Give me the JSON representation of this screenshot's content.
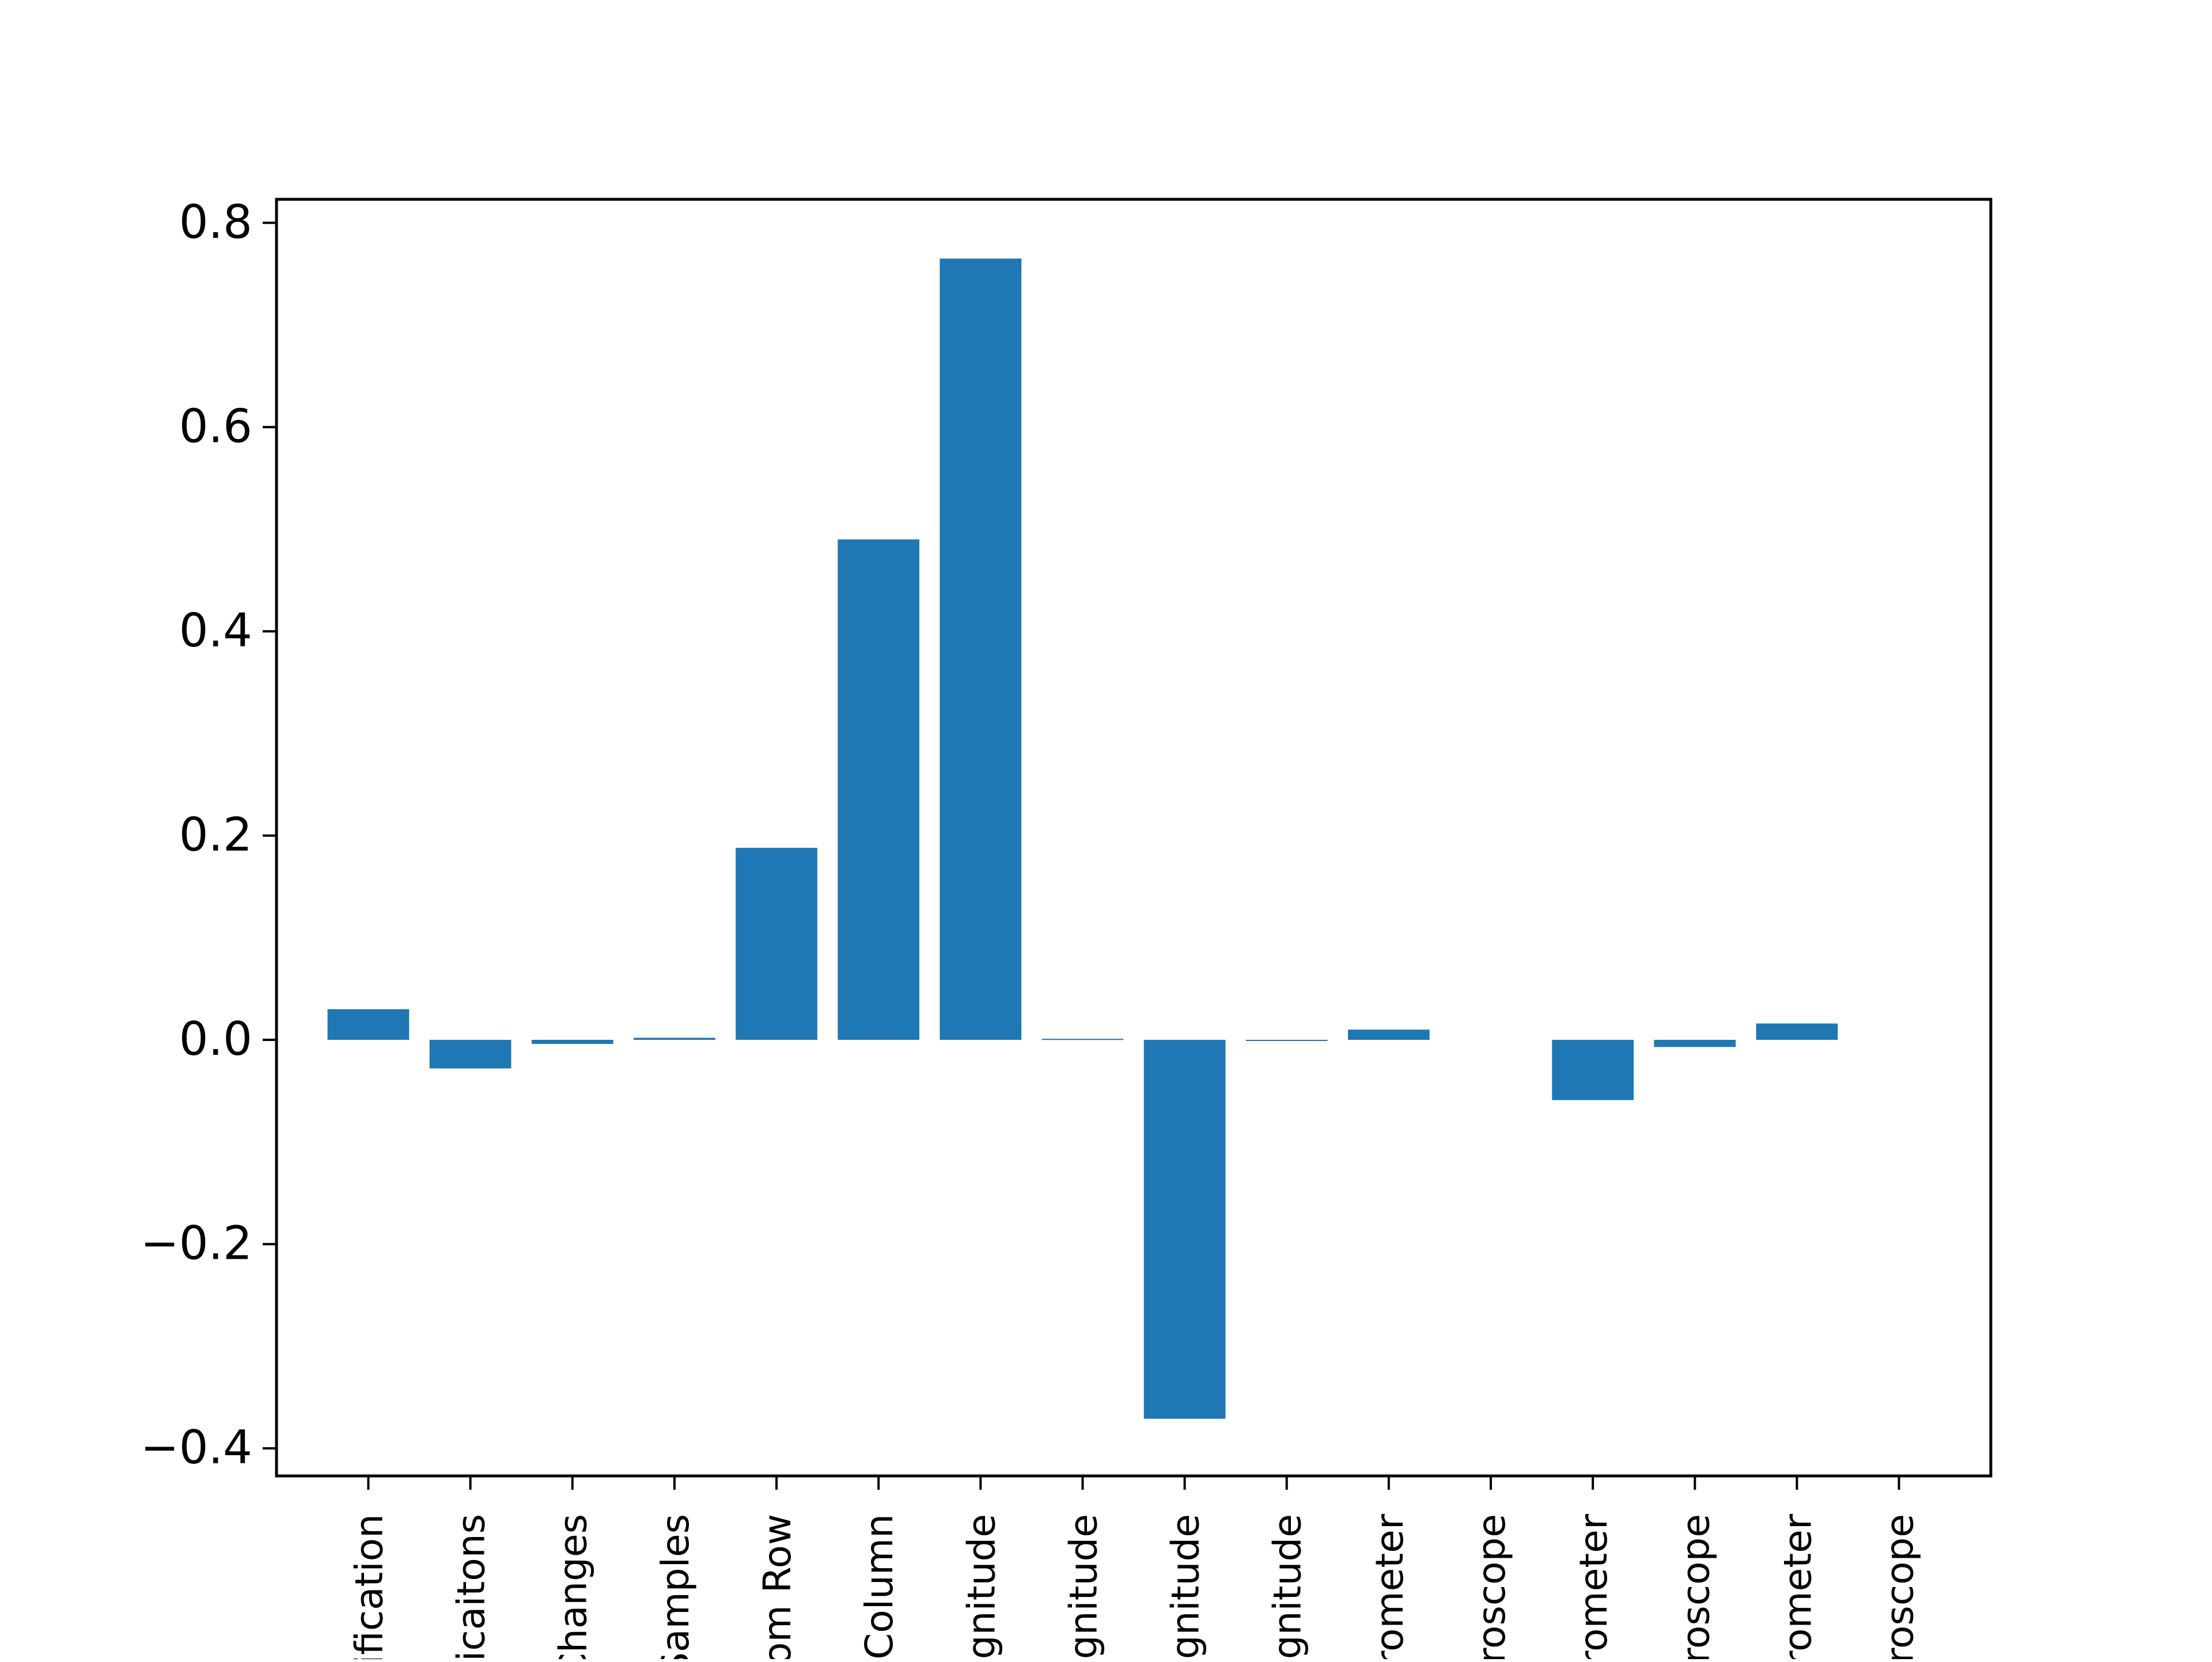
{
  "chart_data": {
    "type": "bar",
    "title": "",
    "xlabel": "",
    "ylabel": "",
    "categories": [
      "ification",
      "icaitons",
      "Changes",
      "Samples",
      "om Row",
      "Column",
      "gnitude",
      "gnitude",
      "gnitude",
      "gnitude",
      "rometer",
      "roscope",
      "rometer",
      "roscope",
      "rometer",
      "roscope"
    ],
    "values": [
      0.03,
      -0.028,
      -0.004,
      0.002,
      0.188,
      0.49,
      0.765,
      0.001,
      -0.371,
      -0.001,
      0.01,
      0.0,
      -0.059,
      -0.007,
      0.016,
      0.0
    ],
    "ylim": [
      -0.427,
      0.823
    ],
    "yticks": [
      -0.4,
      -0.2,
      0.0,
      0.2,
      0.4,
      0.6,
      0.8
    ],
    "ytick_labels": [
      "−0.4",
      "−0.2",
      "0.0",
      "0.2",
      "0.4",
      "0.6",
      "0.8"
    ],
    "grid": false,
    "legend": "none",
    "bar_color": "#1f77b4"
  }
}
